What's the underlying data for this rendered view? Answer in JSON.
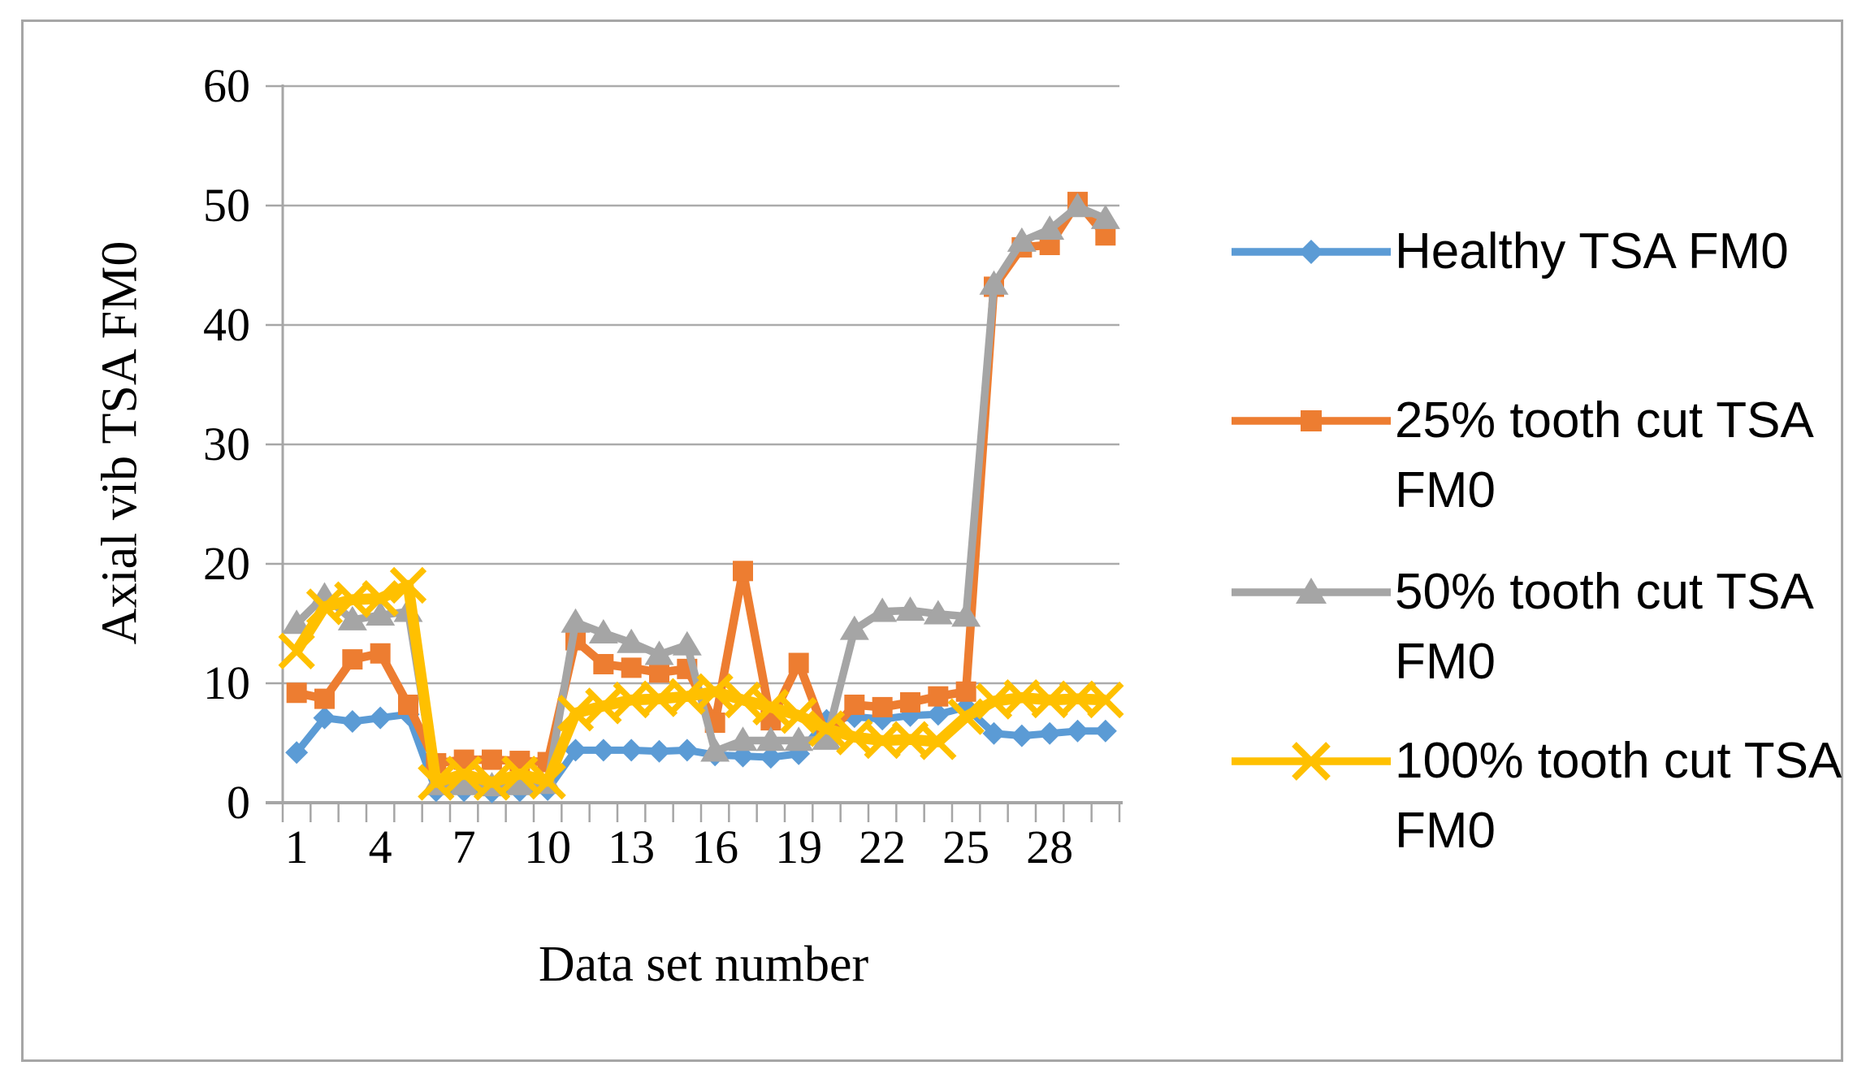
{
  "chart_data": {
    "type": "line",
    "xlabel": "Data set number",
    "ylabel": "Axial vib TSA FM0",
    "categories": [
      1,
      2,
      3,
      4,
      5,
      6,
      7,
      8,
      9,
      10,
      11,
      12,
      13,
      14,
      15,
      16,
      17,
      18,
      19,
      20,
      21,
      22,
      23,
      24,
      25,
      26,
      27,
      28,
      29,
      30
    ],
    "x_tick_labels": [
      1,
      4,
      7,
      10,
      13,
      16,
      19,
      22,
      25,
      28
    ],
    "y_ticks": [
      0,
      10,
      20,
      30,
      40,
      50,
      60
    ],
    "ylim": [
      0,
      60
    ],
    "grid": "horizontal",
    "legend_position": "right",
    "series": [
      {
        "name": "Healthy TSA FM0",
        "color": "#5B9BD5",
        "marker": "diamond",
        "values": [
          4.2,
          7.1,
          6.8,
          7.1,
          7.4,
          1.0,
          1.0,
          0.9,
          1.0,
          1.1,
          4.4,
          4.4,
          4.4,
          4.3,
          4.4,
          4.0,
          3.9,
          3.8,
          4.1,
          6.9,
          7.2,
          7.0,
          7.3,
          7.4,
          8.0,
          5.8,
          5.6,
          5.8,
          6.0,
          6.0
        ]
      },
      {
        "name": "25% tooth cut TSA FM0",
        "color": "#ED7D31",
        "marker": "square",
        "values": [
          9.2,
          8.7,
          12.0,
          12.5,
          8.2,
          3.3,
          3.6,
          3.6,
          3.5,
          3.4,
          13.6,
          11.6,
          11.3,
          10.9,
          11.2,
          6.7,
          19.4,
          6.9,
          11.7,
          5.5,
          8.2,
          8.0,
          8.4,
          8.9,
          9.3,
          43.2,
          46.5,
          46.7,
          50.3,
          47.5
        ]
      },
      {
        "name": "50% tooth cut TSA FM0",
        "color": "#A5A5A5",
        "marker": "triangle",
        "values": [
          15.0,
          17.3,
          15.3,
          15.7,
          16.0,
          1.5,
          1.5,
          1.4,
          1.5,
          1.6,
          15.1,
          14.2,
          13.4,
          12.4,
          13.2,
          4.3,
          5.2,
          5.2,
          5.2,
          5.3,
          14.5,
          16.0,
          16.1,
          15.8,
          15.6,
          43.4,
          47.0,
          48.0,
          49.9,
          48.9
        ]
      },
      {
        "name": "100% tooth cut TSA FM0",
        "color": "#FFC000",
        "marker": "x",
        "values": [
          12.7,
          16.4,
          17.0,
          17.1,
          18.2,
          1.7,
          2.4,
          1.7,
          2.4,
          1.8,
          7.5,
          8.1,
          8.6,
          8.7,
          8.9,
          9.3,
          8.6,
          8.0,
          7.3,
          6.2,
          5.5,
          5.2,
          5.3,
          5.1,
          7.2,
          8.5,
          8.8,
          8.6,
          8.7,
          8.6
        ]
      }
    ],
    "colors": {
      "gridline": "#ABABAB",
      "axis": "#A6A6A6",
      "frame": "#A6A6A6",
      "text": "#000000"
    }
  }
}
